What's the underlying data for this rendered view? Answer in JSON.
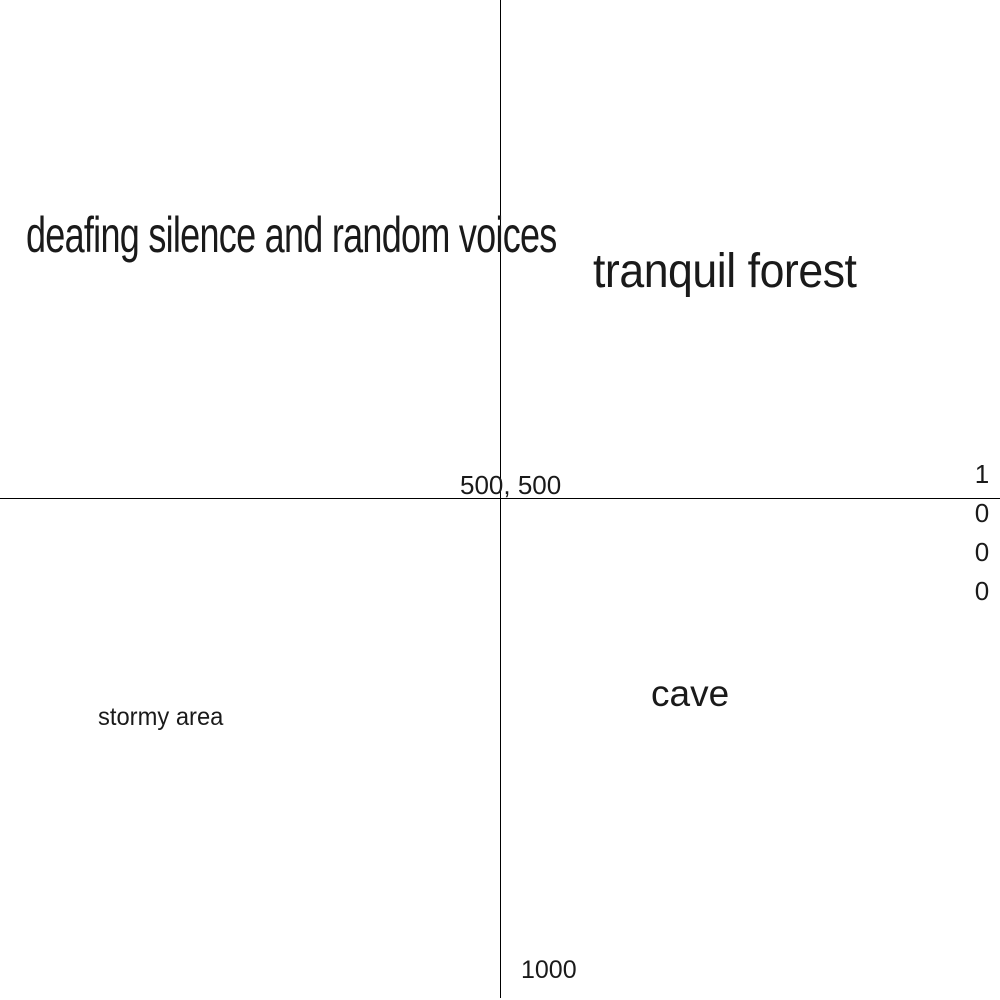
{
  "regions": {
    "top_left": "deafing silence and random voices",
    "top_right": "tranquil forest",
    "bottom_left": "stormy area",
    "bottom_right": "cave"
  },
  "axes": {
    "center_label": "500, 500",
    "bottom_label": "1000",
    "right_label": "1000"
  }
}
